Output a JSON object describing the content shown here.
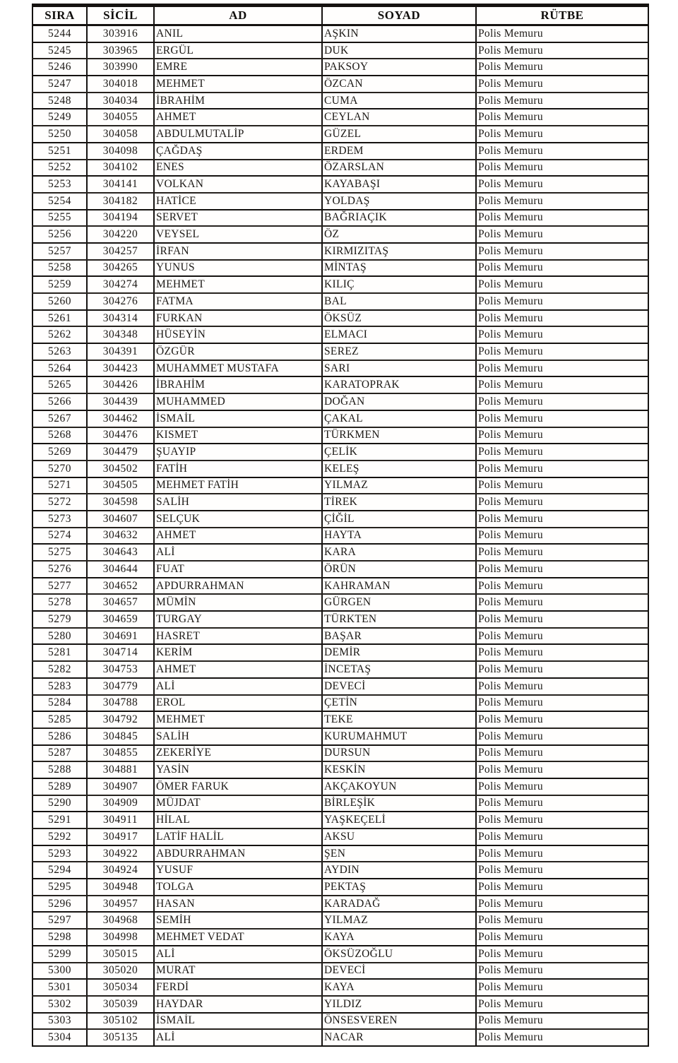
{
  "table": {
    "columns": [
      "SIRA",
      "SİCİL",
      "AD",
      "SOYAD",
      "RÜTBE"
    ],
    "rows": [
      [
        "5244",
        "303916",
        "ANIL",
        "AŞKIN",
        "Polis Memuru"
      ],
      [
        "5245",
        "303965",
        "ERGÜL",
        "DUK",
        "Polis Memuru"
      ],
      [
        "5246",
        "303990",
        "EMRE",
        "PAKSOY",
        "Polis Memuru"
      ],
      [
        "5247",
        "304018",
        "MEHMET",
        "ÖZCAN",
        "Polis Memuru"
      ],
      [
        "5248",
        "304034",
        "İBRAHİM",
        "CUMA",
        "Polis Memuru"
      ],
      [
        "5249",
        "304055",
        "AHMET",
        "CEYLAN",
        "Polis Memuru"
      ],
      [
        "5250",
        "304058",
        "ABDULMUTALİP",
        "GÜZEL",
        "Polis Memuru"
      ],
      [
        "5251",
        "304098",
        "ÇAĞDAŞ",
        "ERDEM",
        "Polis Memuru"
      ],
      [
        "5252",
        "304102",
        "ENES",
        "ÖZARSLAN",
        "Polis Memuru"
      ],
      [
        "5253",
        "304141",
        "VOLKAN",
        "KAYABAŞI",
        "Polis Memuru"
      ],
      [
        "5254",
        "304182",
        "HATİCE",
        "YOLDAŞ",
        "Polis Memuru"
      ],
      [
        "5255",
        "304194",
        "SERVET",
        "BAĞRIAÇIK",
        "Polis Memuru"
      ],
      [
        "5256",
        "304220",
        "VEYSEL",
        "ÖZ",
        "Polis Memuru"
      ],
      [
        "5257",
        "304257",
        "İRFAN",
        "KIRMIZITAŞ",
        "Polis Memuru"
      ],
      [
        "5258",
        "304265",
        "YUNUS",
        "MİNTAŞ",
        "Polis Memuru"
      ],
      [
        "5259",
        "304274",
        "MEHMET",
        "KILIÇ",
        "Polis Memuru"
      ],
      [
        "5260",
        "304276",
        "FATMA",
        "BAL",
        "Polis Memuru"
      ],
      [
        "5261",
        "304314",
        "FURKAN",
        "ÖKSÜZ",
        "Polis Memuru"
      ],
      [
        "5262",
        "304348",
        "HÜSEYİN",
        "ELMACI",
        "Polis Memuru"
      ],
      [
        "5263",
        "304391",
        "ÖZGÜR",
        "SEREZ",
        "Polis Memuru"
      ],
      [
        "5264",
        "304423",
        "MUHAMMET MUSTAFA",
        "SARI",
        "Polis Memuru"
      ],
      [
        "5265",
        "304426",
        "İBRAHİM",
        "KARATOPRAK",
        "Polis Memuru"
      ],
      [
        "5266",
        "304439",
        "MUHAMMED",
        "DOĞAN",
        "Polis Memuru"
      ],
      [
        "5267",
        "304462",
        "İSMAİL",
        "ÇAKAL",
        "Polis Memuru"
      ],
      [
        "5268",
        "304476",
        "KISMET",
        "TÜRKMEN",
        "Polis Memuru"
      ],
      [
        "5269",
        "304479",
        "ŞUAYIP",
        "ÇELİK",
        "Polis Memuru"
      ],
      [
        "5270",
        "304502",
        "FATİH",
        "KELEŞ",
        "Polis Memuru"
      ],
      [
        "5271",
        "304505",
        "MEHMET FATİH",
        "YILMAZ",
        "Polis Memuru"
      ],
      [
        "5272",
        "304598",
        "SALİH",
        "TİREK",
        "Polis Memuru"
      ],
      [
        "5273",
        "304607",
        "SELÇUK",
        "ÇİĞİL",
        "Polis Memuru"
      ],
      [
        "5274",
        "304632",
        "AHMET",
        "HAYTA",
        "Polis Memuru"
      ],
      [
        "5275",
        "304643",
        "ALİ",
        "KARA",
        "Polis Memuru"
      ],
      [
        "5276",
        "304644",
        "FUAT",
        "ÖRÜN",
        "Polis Memuru"
      ],
      [
        "5277",
        "304652",
        "APDURRAHMAN",
        "KAHRAMAN",
        "Polis Memuru"
      ],
      [
        "5278",
        "304657",
        "MÜMİN",
        "GÜRGEN",
        "Polis Memuru"
      ],
      [
        "5279",
        "304659",
        "TURGAY",
        "TÜRKTEN",
        "Polis Memuru"
      ],
      [
        "5280",
        "304691",
        "HASRET",
        "BAŞAR",
        "Polis Memuru"
      ],
      [
        "5281",
        "304714",
        "KERİM",
        "DEMİR",
        "Polis Memuru"
      ],
      [
        "5282",
        "304753",
        "AHMET",
        "İNCETAŞ",
        "Polis Memuru"
      ],
      [
        "5283",
        "304779",
        "ALİ",
        "DEVECİ",
        "Polis Memuru"
      ],
      [
        "5284",
        "304788",
        "EROL",
        "ÇETİN",
        "Polis Memuru"
      ],
      [
        "5285",
        "304792",
        "MEHMET",
        "TEKE",
        "Polis Memuru"
      ],
      [
        "5286",
        "304845",
        "SALİH",
        "KURUMAHMUT",
        "Polis Memuru"
      ],
      [
        "5287",
        "304855",
        "ZEKERİYE",
        "DURSUN",
        "Polis Memuru"
      ],
      [
        "5288",
        "304881",
        "YASİN",
        "KESKİN",
        "Polis Memuru"
      ],
      [
        "5289",
        "304907",
        "ÖMER FARUK",
        "AKÇAKOYUN",
        "Polis Memuru"
      ],
      [
        "5290",
        "304909",
        "MÜJDAT",
        "BİRLEŞİK",
        "Polis Memuru"
      ],
      [
        "5291",
        "304911",
        "HİLAL",
        "YAŞKEÇELİ",
        "Polis Memuru"
      ],
      [
        "5292",
        "304917",
        "LATİF HALİL",
        "AKSU",
        "Polis Memuru"
      ],
      [
        "5293",
        "304922",
        "ABDURRAHMAN",
        "ŞEN",
        "Polis Memuru"
      ],
      [
        "5294",
        "304924",
        "YUSUF",
        "AYDIN",
        "Polis Memuru"
      ],
      [
        "5295",
        "304948",
        "TOLGA",
        "PEKTAŞ",
        "Polis Memuru"
      ],
      [
        "5296",
        "304957",
        "HASAN",
        "KARADAĞ",
        "Polis Memuru"
      ],
      [
        "5297",
        "304968",
        "SEMİH",
        "YILMAZ",
        "Polis Memuru"
      ],
      [
        "5298",
        "304998",
        "MEHMET VEDAT",
        "KAYA",
        "Polis Memuru"
      ],
      [
        "5299",
        "305015",
        "ALİ",
        "ÖKSÜZOĞLU",
        "Polis Memuru"
      ],
      [
        "5300",
        "305020",
        "MURAT",
        "DEVECİ",
        "Polis Memuru"
      ],
      [
        "5301",
        "305034",
        "FERDİ",
        "KAYA",
        "Polis Memuru"
      ],
      [
        "5302",
        "305039",
        "HAYDAR",
        "YILDIZ",
        "Polis Memuru"
      ],
      [
        "5303",
        "305102",
        "İSMAİL",
        "ÖNSESVEREN",
        "Polis Memuru"
      ],
      [
        "5304",
        "305135",
        "ALİ",
        "NACAR",
        "Polis Memuru"
      ]
    ]
  }
}
